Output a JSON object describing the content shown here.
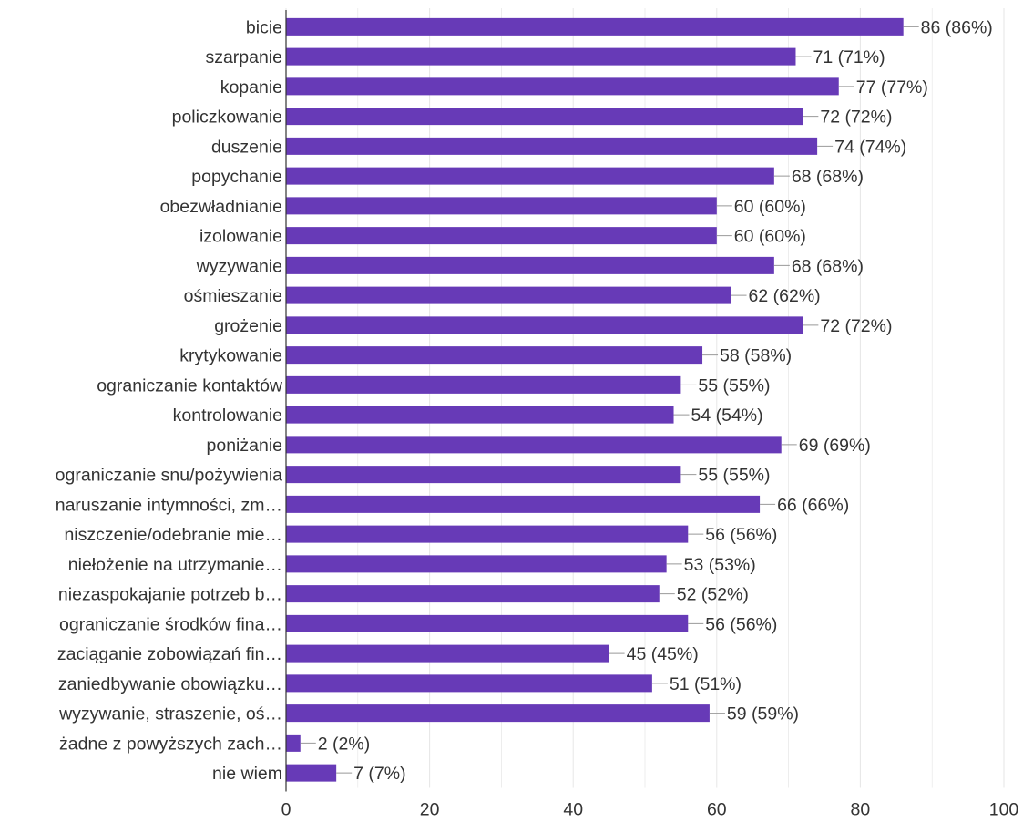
{
  "chart_data": {
    "type": "bar",
    "orientation": "horizontal",
    "categories": [
      "bicie",
      "szarpanie",
      "kopanie",
      "policzkowanie",
      "duszenie",
      "popychanie",
      "obezwładnianie",
      "izolowanie",
      "wyzywanie",
      "ośmieszanie",
      "grożenie",
      "krytykowanie",
      "ograniczanie kontaktów",
      "kontrolowanie",
      "poniżanie",
      "ograniczanie snu/pożywienia",
      "naruszanie intymności, zm…",
      "niszczenie/odebranie mie…",
      "niełożenie na utrzymanie…",
      "niezaspokajanie potrzeb b…",
      "ograniczanie środków fina…",
      "zaciąganie zobowiązań fin…",
      "zaniedbywanie obowiązku…",
      "wyzywanie, straszenie, oś…",
      "żadne z powyższych zach…",
      "nie wiem"
    ],
    "values": [
      86,
      71,
      77,
      72,
      74,
      68,
      60,
      60,
      68,
      62,
      72,
      58,
      55,
      54,
      69,
      55,
      66,
      56,
      53,
      52,
      56,
      45,
      51,
      59,
      2,
      7
    ],
    "value_labels": [
      "86 (86%)",
      "71 (71%)",
      "77 (77%)",
      "72 (72%)",
      "74 (74%)",
      "68 (68%)",
      "60 (60%)",
      "60 (60%)",
      "68 (68%)",
      "62 (62%)",
      "72 (72%)",
      "58 (58%)",
      "55 (55%)",
      "54 (54%)",
      "69 (69%)",
      "55 (55%)",
      "66 (66%)",
      "56 (56%)",
      "53 (53%)",
      "52 (52%)",
      "56 (56%)",
      "45 (45%)",
      "51 (51%)",
      "59 (59%)",
      "2 (2%)",
      "7 (7%)"
    ],
    "xlim": [
      0,
      100
    ],
    "x_ticks": [
      0,
      20,
      40,
      60,
      80,
      100
    ],
    "x_tick_labels": [
      "0",
      "20",
      "40",
      "60",
      "80",
      "100"
    ],
    "grid": true,
    "legend": "none",
    "title": "",
    "xlabel": "",
    "ylabel": "",
    "colors": {
      "bar": "#673ab7",
      "grid": "#e6e6e6",
      "axis": "#333333",
      "leader": "#999999",
      "text": "#333333"
    }
  }
}
